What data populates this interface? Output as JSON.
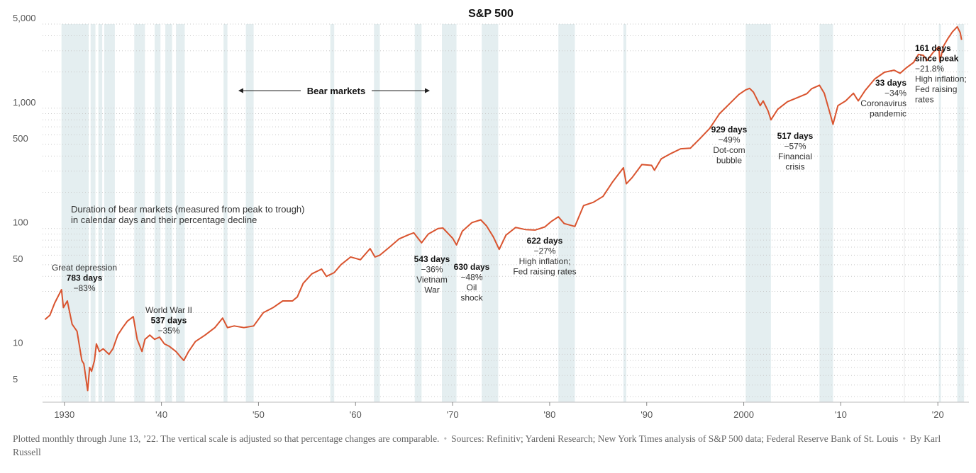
{
  "chart_data": {
    "type": "line",
    "title": "S&P 500",
    "scale": "log",
    "ylim": [
      3.6,
      5000
    ],
    "xlim": [
      1927.75,
      2023.2
    ],
    "y_ticks": [
      {
        "value": 5000,
        "label": "5,000"
      },
      {
        "value": 1000,
        "label": "1,000"
      },
      {
        "value": 500,
        "label": "500"
      },
      {
        "value": 100,
        "label": "100"
      },
      {
        "value": 50,
        "label": "50"
      },
      {
        "value": 10,
        "label": "10"
      },
      {
        "value": 5,
        "label": "5"
      }
    ],
    "x_ticks": [
      {
        "value": 1930,
        "label": "1930"
      },
      {
        "value": 1940,
        "label": "'40"
      },
      {
        "value": 1950,
        "label": "'50"
      },
      {
        "value": 1960,
        "label": "'60"
      },
      {
        "value": 1970,
        "label": "'70"
      },
      {
        "value": 1980,
        "label": "'80"
      },
      {
        "value": 1990,
        "label": "'90"
      },
      {
        "value": 2000,
        "label": "2000"
      },
      {
        "value": 2010,
        "label": "'10"
      },
      {
        "value": 2020,
        "label": "'20"
      }
    ],
    "series": [
      {
        "color": "#d9542f",
        "x": [
          1928.0,
          1928.5,
          1929.0,
          1929.7,
          1929.9,
          1930.3,
          1930.8,
          1931.3,
          1931.8,
          1932.0,
          1932.4,
          1932.6,
          1932.8,
          1933.1,
          1933.3,
          1933.6,
          1934.0,
          1934.6,
          1935.0,
          1935.5,
          1936.0,
          1936.5,
          1937.1,
          1937.5,
          1938.0,
          1938.3,
          1938.8,
          1939.3,
          1939.8,
          1940.3,
          1940.8,
          1941.5,
          1942.0,
          1942.3,
          1942.8,
          1943.5,
          1944.5,
          1945.5,
          1946.3,
          1946.8,
          1947.5,
          1948.5,
          1949.5,
          1950.5,
          1951.5,
          1952.5,
          1953.5,
          1954.0,
          1954.6,
          1955.5,
          1956.5,
          1957.0,
          1957.8,
          1958.5,
          1959.5,
          1960.5,
          1961.5,
          1962.0,
          1962.5,
          1963.5,
          1964.5,
          1965.5,
          1966.0,
          1966.8,
          1967.5,
          1968.5,
          1969.0,
          1970.0,
          1970.4,
          1971.0,
          1972.0,
          1972.9,
          1973.5,
          1974.2,
          1974.8,
          1975.5,
          1976.5,
          1977.5,
          1978.5,
          1979.5,
          1980.2,
          1980.9,
          1981.5,
          1982.6,
          1983.5,
          1984.5,
          1985.5,
          1986.5,
          1987.6,
          1987.9,
          1988.5,
          1989.5,
          1990.5,
          1990.8,
          1991.5,
          1992.5,
          1993.5,
          1994.5,
          1995.5,
          1996.5,
          1997.5,
          1998.5,
          1999.5,
          2000.2,
          2000.6,
          2001.0,
          2001.7,
          2002.0,
          2002.5,
          2002.8,
          2003.5,
          2004.5,
          2005.5,
          2006.5,
          2007.0,
          2007.8,
          2008.3,
          2008.9,
          2009.2,
          2009.7,
          2010.5,
          2011.3,
          2011.8,
          2012.5,
          2013.5,
          2014.5,
          2015.5,
          2016.1,
          2016.8,
          2017.5,
          2018.0,
          2018.5,
          2018.9,
          2019.5,
          2020.1,
          2020.2,
          2020.6,
          2021.0,
          2021.5,
          2022.0,
          2022.3,
          2022.45
        ],
        "values": [
          17.5,
          19,
          24,
          31,
          22,
          25,
          16,
          14,
          8,
          7.5,
          4.5,
          7,
          6.5,
          8,
          11,
          9.5,
          10,
          9,
          10,
          13,
          15,
          17,
          18.5,
          12,
          9.5,
          12,
          13,
          12,
          12.5,
          11,
          10.5,
          9.5,
          8.5,
          8,
          9.5,
          11.5,
          13,
          15,
          18,
          15,
          15.5,
          15,
          15.5,
          20,
          22,
          25,
          25,
          27,
          35,
          42,
          46,
          40,
          43,
          50,
          58,
          55,
          68,
          58,
          60,
          70,
          82,
          89,
          92,
          76,
          90,
          100,
          101,
          83,
          73,
          95,
          112,
          118,
          105,
          85,
          67,
          88,
          102,
          98,
          97,
          103,
          115,
          125,
          110,
          104,
          155,
          165,
          185,
          245,
          320,
          235,
          265,
          340,
          335,
          305,
          380,
          420,
          460,
          465,
          560,
          680,
          900,
          1080,
          1300,
          1420,
          1460,
          1360,
          1050,
          1150,
          950,
          800,
          980,
          1130,
          1220,
          1320,
          1450,
          1550,
          1330,
          900,
          735,
          1050,
          1150,
          1330,
          1150,
          1400,
          1750,
          1990,
          2070,
          1950,
          2180,
          2400,
          2800,
          2750,
          2500,
          2900,
          3250,
          2450,
          3300,
          3750,
          4300,
          4750,
          4250,
          3700
        ]
      }
    ],
    "bear_markets": [
      [
        1929.7,
        1932.5
      ],
      [
        1932.7,
        1933.2
      ],
      [
        1933.5,
        1933.9
      ],
      [
        1934.1,
        1935.2
      ],
      [
        1937.2,
        1938.3
      ],
      [
        1939.3,
        1939.9
      ],
      [
        1940.4,
        1941.1
      ],
      [
        1941.5,
        1942.4
      ],
      [
        1946.4,
        1946.8
      ],
      [
        1948.7,
        1949.5
      ],
      [
        1957.4,
        1957.8
      ],
      [
        1961.9,
        1962.5
      ],
      [
        1966.1,
        1966.8
      ],
      [
        1968.9,
        1970.4
      ],
      [
        1973.0,
        1974.7
      ],
      [
        1980.9,
        1982.6
      ],
      [
        1987.6,
        1987.9
      ],
      [
        2000.2,
        2002.8
      ],
      [
        2007.8,
        2009.2
      ],
      [
        2020.1,
        2020.2
      ],
      [
        2022.0,
        2022.7
      ]
    ],
    "bear_markets_label": "Bear markets",
    "note": {
      "line1": "Duration of bear markets (measured from peak to trough)",
      "line2": "in calendar days and their percentage decline"
    },
    "annotations": [
      {
        "lines": [
          {
            "text": "Great depression",
            "bold": false
          },
          {
            "text": "783 days",
            "bold": true
          },
          {
            "text": "−83%",
            "bold": false
          }
        ]
      },
      {
        "lines": [
          {
            "text": "World War II",
            "bold": false
          },
          {
            "text": "537 days",
            "bold": true
          },
          {
            "text": "−35%",
            "bold": false
          }
        ]
      },
      {
        "lines": [
          {
            "text": "543 days",
            "bold": true
          },
          {
            "text": "−36%",
            "bold": false
          },
          {
            "text": "Vietnam",
            "bold": false
          },
          {
            "text": "War",
            "bold": false
          }
        ]
      },
      {
        "lines": [
          {
            "text": "630 days",
            "bold": true
          },
          {
            "text": "−48%",
            "bold": false
          },
          {
            "text": "Oil",
            "bold": false
          },
          {
            "text": "shock",
            "bold": false
          }
        ]
      },
      {
        "lines": [
          {
            "text": "622 days",
            "bold": true
          },
          {
            "text": "−27%",
            "bold": false
          },
          {
            "text": "High inflation;",
            "bold": false
          },
          {
            "text": "Fed raising rates",
            "bold": false
          }
        ]
      },
      {
        "lines": [
          {
            "text": "929 days",
            "bold": true
          },
          {
            "text": "−49%",
            "bold": false
          },
          {
            "text": "Dot-com",
            "bold": false
          },
          {
            "text": "bubble",
            "bold": false
          }
        ]
      },
      {
        "lines": [
          {
            "text": "517 days",
            "bold": true
          },
          {
            "text": "−57%",
            "bold": false
          },
          {
            "text": "Financial",
            "bold": false
          },
          {
            "text": "crisis",
            "bold": false
          }
        ]
      },
      {
        "lines": [
          {
            "text": "33 days",
            "bold": true
          },
          {
            "text": "−34%",
            "bold": false
          },
          {
            "text": "Coronavirus",
            "bold": false
          },
          {
            "text": "pandemic",
            "bold": false
          }
        ]
      },
      {
        "lines": [
          {
            "text": "161 days",
            "bold": true
          },
          {
            "text": "since peak",
            "bold": true
          },
          {
            "text": "−21.8%",
            "bold": false
          },
          {
            "text": "High inflation;",
            "bold": false
          },
          {
            "text": "Fed raising",
            "bold": false
          },
          {
            "text": "rates",
            "bold": false
          }
        ]
      }
    ]
  },
  "footer": {
    "note": "Plotted monthly through June 13, ’22. The vertical scale is adjusted so that percentage changes are comparable.",
    "sources": "Sources: Refinitiv; Yardeni Research; New York Times analysis of S&P 500 data; Federal Reserve Bank of St. Louis",
    "byline": "By Karl Russell"
  },
  "colors": {
    "line": "#d9542f",
    "bear_band": "#e4eef0",
    "grid": "#c8c8c8"
  }
}
